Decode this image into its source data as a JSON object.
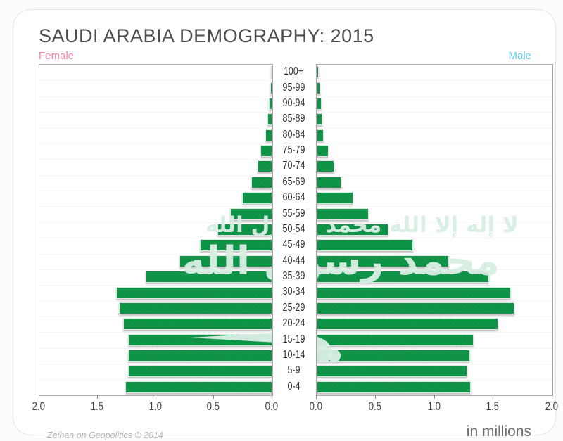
{
  "title": "SAUDI ARABIA DEMOGRAPHY: 2015",
  "legend": {
    "female_label": "Female",
    "male_label": "Male"
  },
  "footer": {
    "credit": "Zeihan on Geopolitics © 2014",
    "units": "in millions"
  },
  "axis": {
    "female_ticks": [
      "2.0",
      "1.5",
      "1.0",
      "0.5",
      "0.0"
    ],
    "male_ticks": [
      "0.0",
      "0.5",
      "1.0",
      "1.5",
      "2.0"
    ],
    "max_per_side": 2.0
  },
  "watermark": {
    "description": "saudi-flag-shahada-and-sword",
    "line1": "لا إله إلا الله",
    "line2": "محمد رسول الله",
    "sword_icon": "saudi-sword-icon"
  },
  "colors": {
    "bar_green": "#0f9649",
    "female_pink": "#f584ab",
    "male_cyan": "#62cbe9",
    "watermark_mint": "#d8eee3",
    "title_gray": "#4d4d4d"
  },
  "chart_data": {
    "type": "bar",
    "subtype": "population-pyramid",
    "title": "SAUDI ARABIA DEMOGRAPHY: 2015",
    "units": "millions",
    "xlabel": "in millions",
    "xlim_each_side": [
      0,
      2.0
    ],
    "grid": true,
    "categories_top_to_bottom": [
      "100+",
      "95-99",
      "90-94",
      "85-89",
      "80-84",
      "75-79",
      "70-74",
      "65-69",
      "60-64",
      "55-59",
      "50-54",
      "45-49",
      "40-44",
      "35-39",
      "30-34",
      "25-29",
      "20-24",
      "15-19",
      "10-14",
      "5-9",
      "0-4"
    ],
    "series": [
      {
        "name": "Female",
        "side": "left",
        "values": [
          0.01,
          0.02,
          0.03,
          0.04,
          0.06,
          0.1,
          0.13,
          0.18,
          0.26,
          0.36,
          0.47,
          0.62,
          0.8,
          1.09,
          1.34,
          1.32,
          1.28,
          1.24,
          1.24,
          1.24,
          1.26
        ]
      },
      {
        "name": "Male",
        "side": "right",
        "values": [
          0.02,
          0.03,
          0.04,
          0.05,
          0.06,
          0.1,
          0.15,
          0.21,
          0.31,
          0.44,
          0.61,
          0.82,
          1.12,
          1.46,
          1.65,
          1.68,
          1.54,
          1.33,
          1.3,
          1.28,
          1.31
        ]
      }
    ]
  }
}
